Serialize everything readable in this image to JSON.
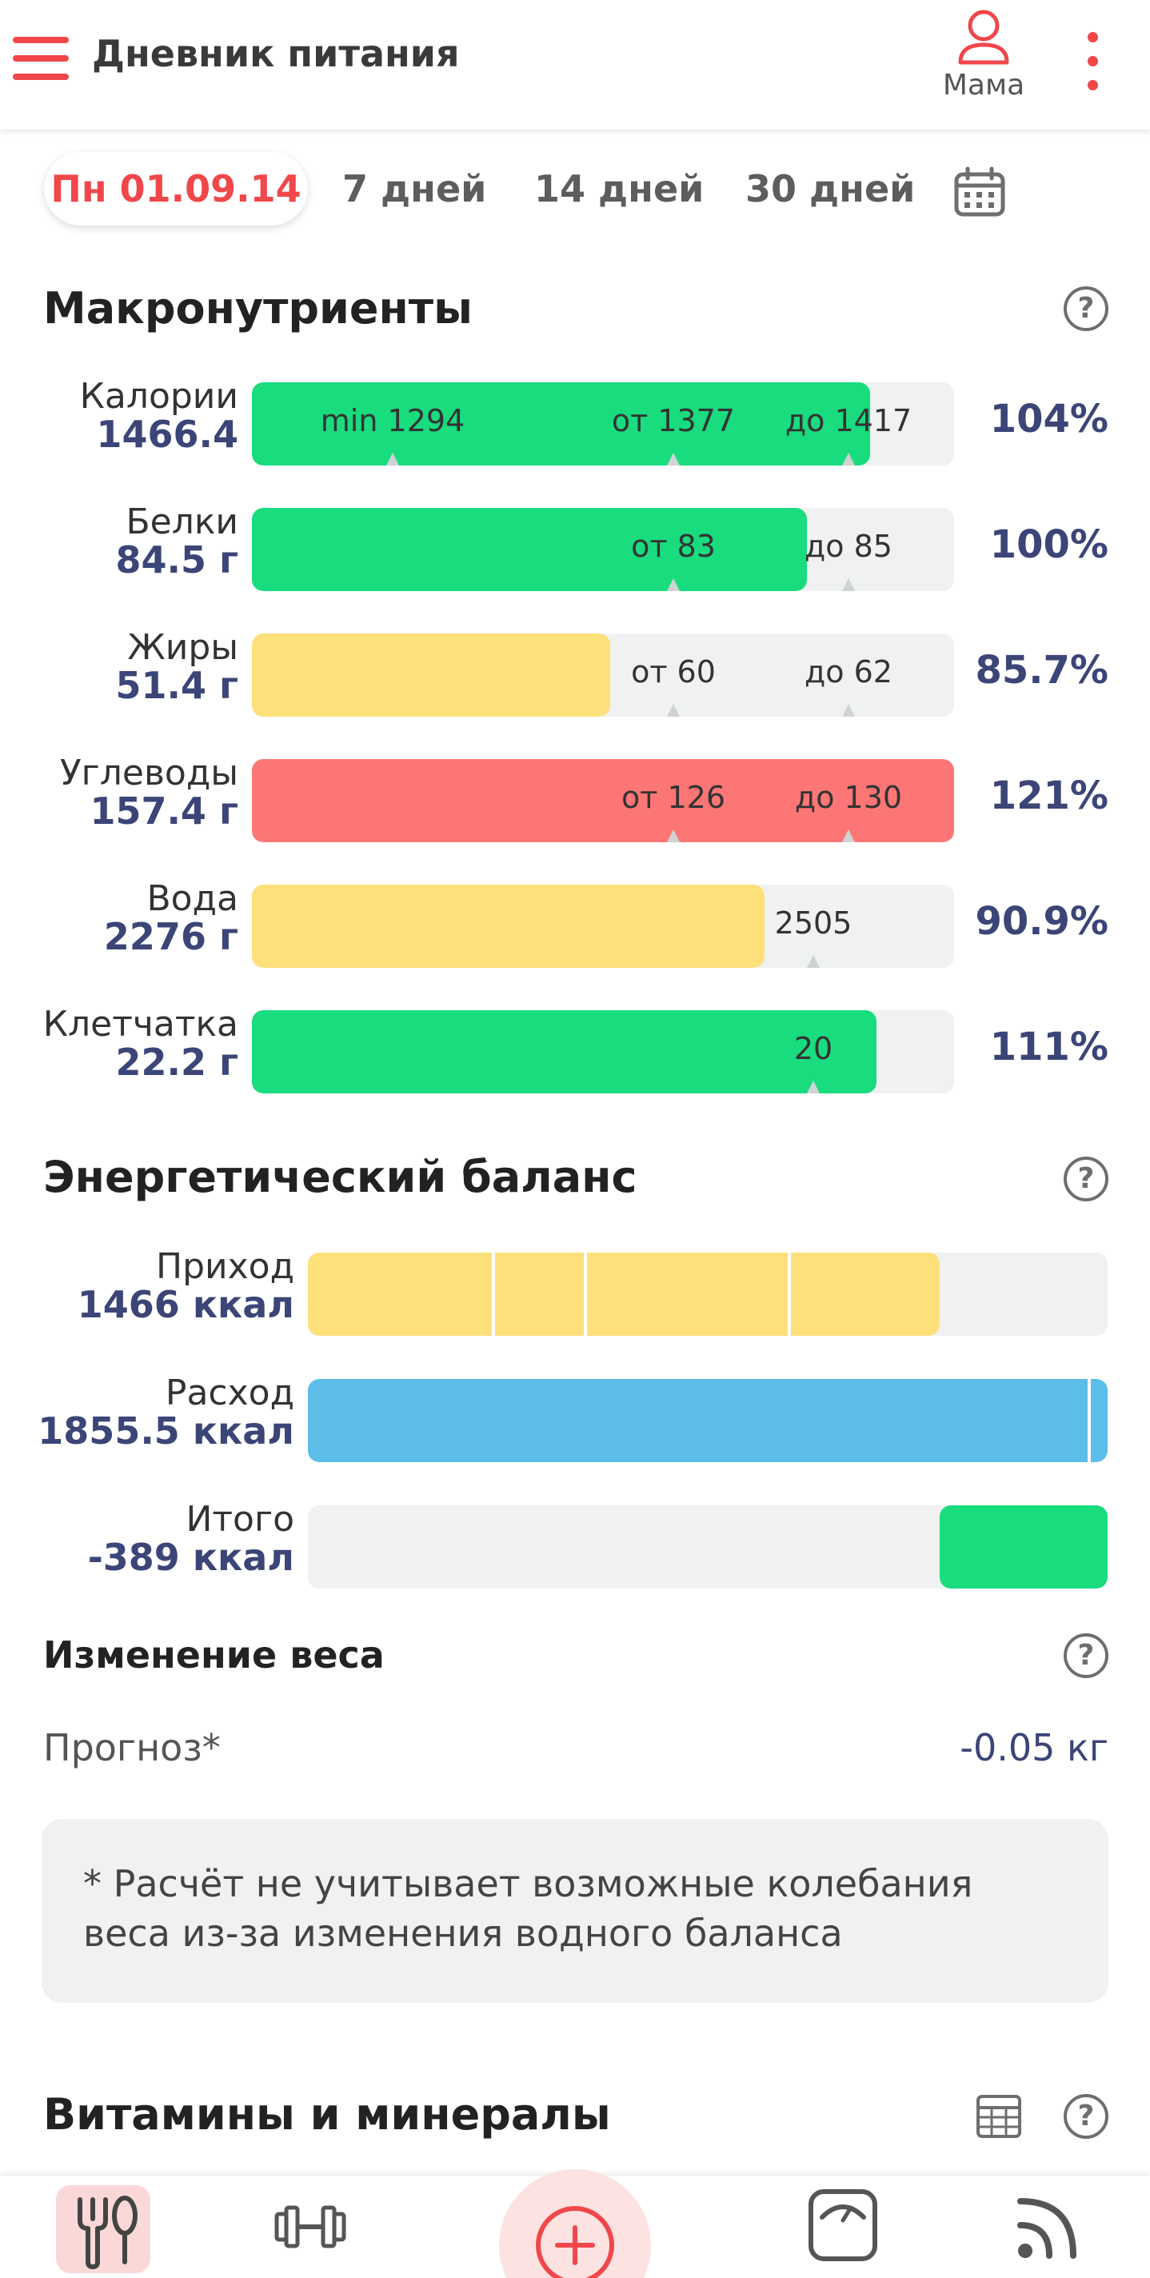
{
  "app_bar": {
    "title": "Дневник питания",
    "profile_name": "Мама",
    "accent": "#f0474a"
  },
  "period": {
    "selected": "Пн 01.09.14",
    "options": [
      "7 дней",
      "14 дней",
      "30 дней"
    ]
  },
  "macros": {
    "title": "Макронутриенты",
    "colors": {
      "ok": "#18dc7e",
      "low": "#fde07a",
      "high": "#fd7676",
      "track": "#f0f1f1"
    },
    "rows": [
      {
        "name": "Калории",
        "value": "1466.4",
        "percent": "104%",
        "fill": 0.88,
        "status": "ok",
        "markers": [
          {
            "label": "min 1294",
            "pos": 0.2
          },
          {
            "label": "от 1377",
            "pos": 0.6
          },
          {
            "label": "до 1417",
            "pos": 0.85
          }
        ]
      },
      {
        "name": "Белки",
        "value": "84.5 г",
        "percent": "100%",
        "fill": 0.79,
        "status": "ok",
        "markers": [
          {
            "label": "от 83",
            "pos": 0.6
          },
          {
            "label": "до 85",
            "pos": 0.85
          }
        ]
      },
      {
        "name": "Жиры",
        "value": "51.4 г",
        "percent": "85.7%",
        "fill": 0.51,
        "status": "low",
        "markers": [
          {
            "label": "от 60",
            "pos": 0.6
          },
          {
            "label": "до 62",
            "pos": 0.85
          }
        ]
      },
      {
        "name": "Углеводы",
        "value": "157.4 г",
        "percent": "121%",
        "fill": 1.0,
        "status": "high",
        "markers": [
          {
            "label": "от 126",
            "pos": 0.6
          },
          {
            "label": "до 130",
            "pos": 0.85
          }
        ]
      },
      {
        "name": "Вода",
        "value": "2276 г",
        "percent": "90.9%",
        "fill": 0.73,
        "status": "low",
        "markers": [
          {
            "label": "2505",
            "pos": 0.8
          }
        ]
      },
      {
        "name": "Клетчатка",
        "value": "22.2 г",
        "percent": "111%",
        "fill": 0.89,
        "status": "ok",
        "markers": [
          {
            "label": "20",
            "pos": 0.8
          }
        ]
      }
    ]
  },
  "energy": {
    "title": "Энергетический баланс",
    "rows": [
      {
        "name": "Приход",
        "value": "1466 ккал",
        "color": "#fde07a",
        "from": 0,
        "to": 0.79,
        "dividers": [
          0.23,
          0.345,
          0.6
        ]
      },
      {
        "name": "Расход",
        "value": "1855.5 ккал",
        "color": "#5dbde9",
        "from": 0,
        "to": 1.0,
        "dividers": [
          0.975
        ]
      },
      {
        "name": "Итого",
        "value": "-389 ккал",
        "color": "#18dc7e",
        "from": 0.79,
        "to": 1.0,
        "dividers": []
      }
    ]
  },
  "weight": {
    "title": "Изменение веса",
    "forecast_label": "Прогноз*",
    "forecast_value": "-0.05 кг",
    "note": "* Расчёт не учитывает возможные колебания веса из-за изменения водного баланса"
  },
  "vitamins": {
    "title": "Витамины и минералы"
  },
  "bottom_nav": {
    "items": [
      "fork-spoon-icon",
      "dumbbell-icon",
      "add-icon",
      "scale-icon",
      "feed-icon"
    ]
  }
}
